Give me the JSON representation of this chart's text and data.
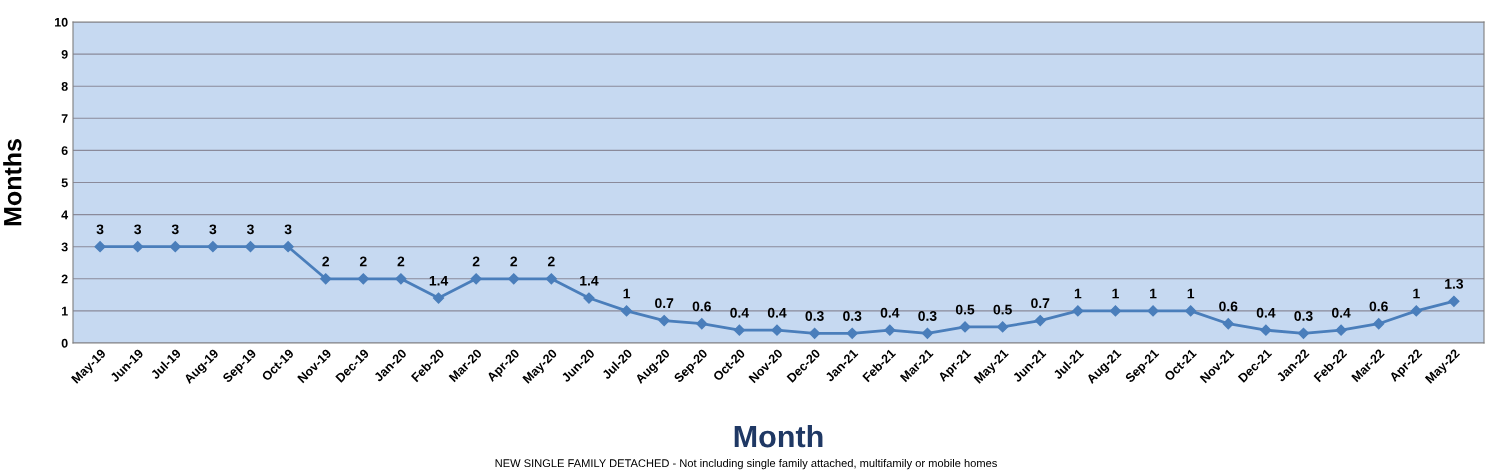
{
  "chart_data": {
    "type": "line",
    "xlabel": "Month",
    "ylabel": "Months",
    "categories": [
      "May-19",
      "Jun-19",
      "Jul-19",
      "Aug-19",
      "Sep-19",
      "Oct-19",
      "Nov-19",
      "Dec-19",
      "Jan-20",
      "Feb-20",
      "Mar-20",
      "Apr-20",
      "May-20",
      "Jun-20",
      "Jul-20",
      "Aug-20",
      "Sep-20",
      "Oct-20",
      "Nov-20",
      "Dec-20",
      "Jan-21",
      "Feb-21",
      "Mar-21",
      "Apr-21",
      "May-21",
      "Jun-21",
      "Jul-21",
      "Aug-21",
      "Sep-21",
      "Oct-21",
      "Nov-21",
      "Dec-21",
      "Jan-22",
      "Feb-22",
      "Mar-22",
      "Apr-22",
      "May-22"
    ],
    "series": [
      {
        "color": "#4a7ebb",
        "values": [
          3,
          3,
          3,
          3,
          3,
          3,
          2,
          2,
          2,
          1.4,
          2,
          2,
          2,
          1.4,
          1,
          0.7,
          0.6,
          0.4,
          0.4,
          0.3,
          0.3,
          0.4,
          0.3,
          0.5,
          0.5,
          0.7,
          1,
          1,
          1,
          1,
          0.6,
          0.4,
          0.3,
          0.4,
          0.6,
          1,
          1.3
        ]
      }
    ],
    "ylim": [
      0,
      10
    ],
    "yticks": [
      0,
      1,
      2,
      3,
      4,
      5,
      6,
      7,
      8,
      9,
      10
    ],
    "grid": "y",
    "marker": "diamond",
    "line_style": "solid",
    "data_labels": true,
    "annotations": [
      "NEW SINGLE FAMILY DETACHED - Not including single family attached, multifamily or mobile homes"
    ]
  }
}
